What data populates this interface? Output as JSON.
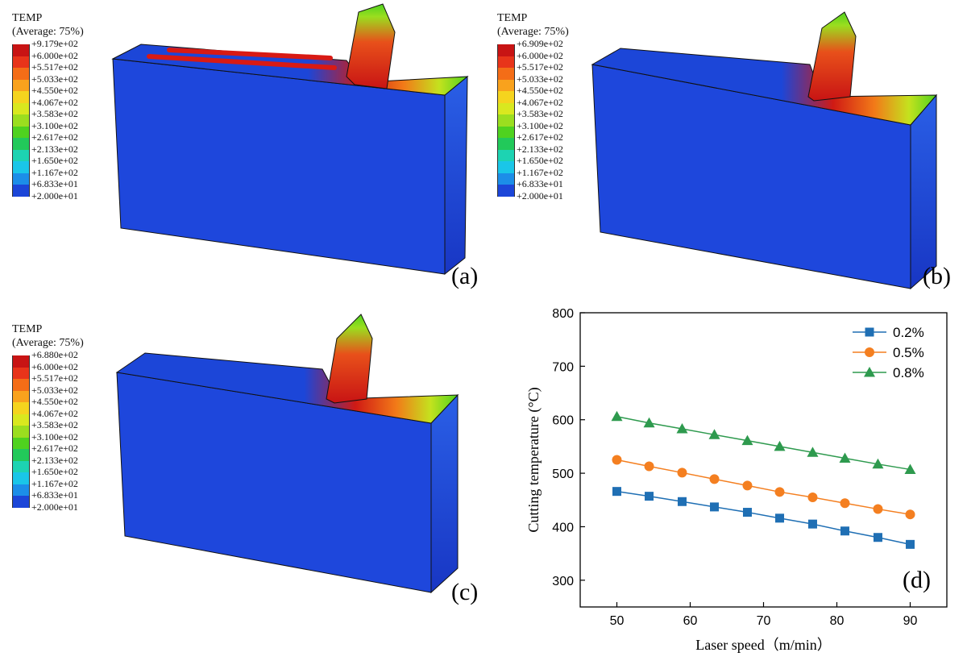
{
  "contour_panels": [
    {
      "id": "a",
      "label": "(a)",
      "legend_title": "TEMP",
      "legend_subtitle": "(Average: 75%)",
      "levels": [
        "+9.179e+02",
        "+6.000e+02",
        "+5.517e+02",
        "+5.033e+02",
        "+4.550e+02",
        "+4.067e+02",
        "+3.583e+02",
        "+3.100e+02",
        "+2.617e+02",
        "+2.133e+02",
        "+1.650e+02",
        "+1.167e+02",
        "+6.833e+01",
        "+2.000e+01"
      ]
    },
    {
      "id": "b",
      "label": "(b)",
      "legend_title": "TEMP",
      "legend_subtitle": "(Average: 75%)",
      "levels": [
        "+6.909e+02",
        "+6.000e+02",
        "+5.517e+02",
        "+5.033e+02",
        "+4.550e+02",
        "+4.067e+02",
        "+3.583e+02",
        "+3.100e+02",
        "+2.617e+02",
        "+2.133e+02",
        "+1.650e+02",
        "+1.167e+02",
        "+6.833e+01",
        "+2.000e+01"
      ]
    },
    {
      "id": "c",
      "label": "(c)",
      "legend_title": "TEMP",
      "legend_subtitle": "(Average: 75%)",
      "levels": [
        "+6.880e+02",
        "+6.000e+02",
        "+5.517e+02",
        "+5.033e+02",
        "+4.550e+02",
        "+4.067e+02",
        "+3.583e+02",
        "+3.100e+02",
        "+2.617e+02",
        "+2.133e+02",
        "+1.650e+02",
        "+1.167e+02",
        "+6.833e+01",
        "+2.000e+01"
      ]
    }
  ],
  "contour_colors": [
    "#c81414",
    "#e8341a",
    "#f46d17",
    "#f9a21d",
    "#f5d41e",
    "#d9e81f",
    "#9bde1f",
    "#4fd21f",
    "#22c95a",
    "#1dd3b2",
    "#1ac6e8",
    "#1c8ee8",
    "#1c46d8"
  ],
  "chart_data": {
    "type": "line",
    "label": "(d)",
    "xlabel": "Laser speed（m/min）",
    "ylabel": "Cutting temperature (°C)",
    "xlim": [
      45,
      95
    ],
    "ylim": [
      250,
      800
    ],
    "xticks": [
      50,
      60,
      70,
      80,
      90
    ],
    "yticks": [
      300,
      400,
      500,
      600,
      700,
      800
    ],
    "x": [
      50,
      54.4,
      58.9,
      63.3,
      67.8,
      72.2,
      76.7,
      81.1,
      85.6,
      90
    ],
    "series": [
      {
        "name": "0.2%",
        "marker": "square",
        "color": "#1f6fb4",
        "values": [
          466,
          457,
          447,
          437,
          427,
          416,
          405,
          392,
          380,
          367
        ]
      },
      {
        "name": "0.5%",
        "marker": "circle",
        "color": "#f47f20",
        "values": [
          525,
          513,
          501,
          489,
          477,
          465,
          455,
          444,
          433,
          423
        ]
      },
      {
        "name": "0.8%",
        "marker": "triangle",
        "color": "#2e9a4e",
        "values": [
          606,
          594,
          583,
          572,
          561,
          550,
          539,
          528,
          517,
          507
        ]
      }
    ],
    "legend_position": "top-right",
    "grid": false
  }
}
